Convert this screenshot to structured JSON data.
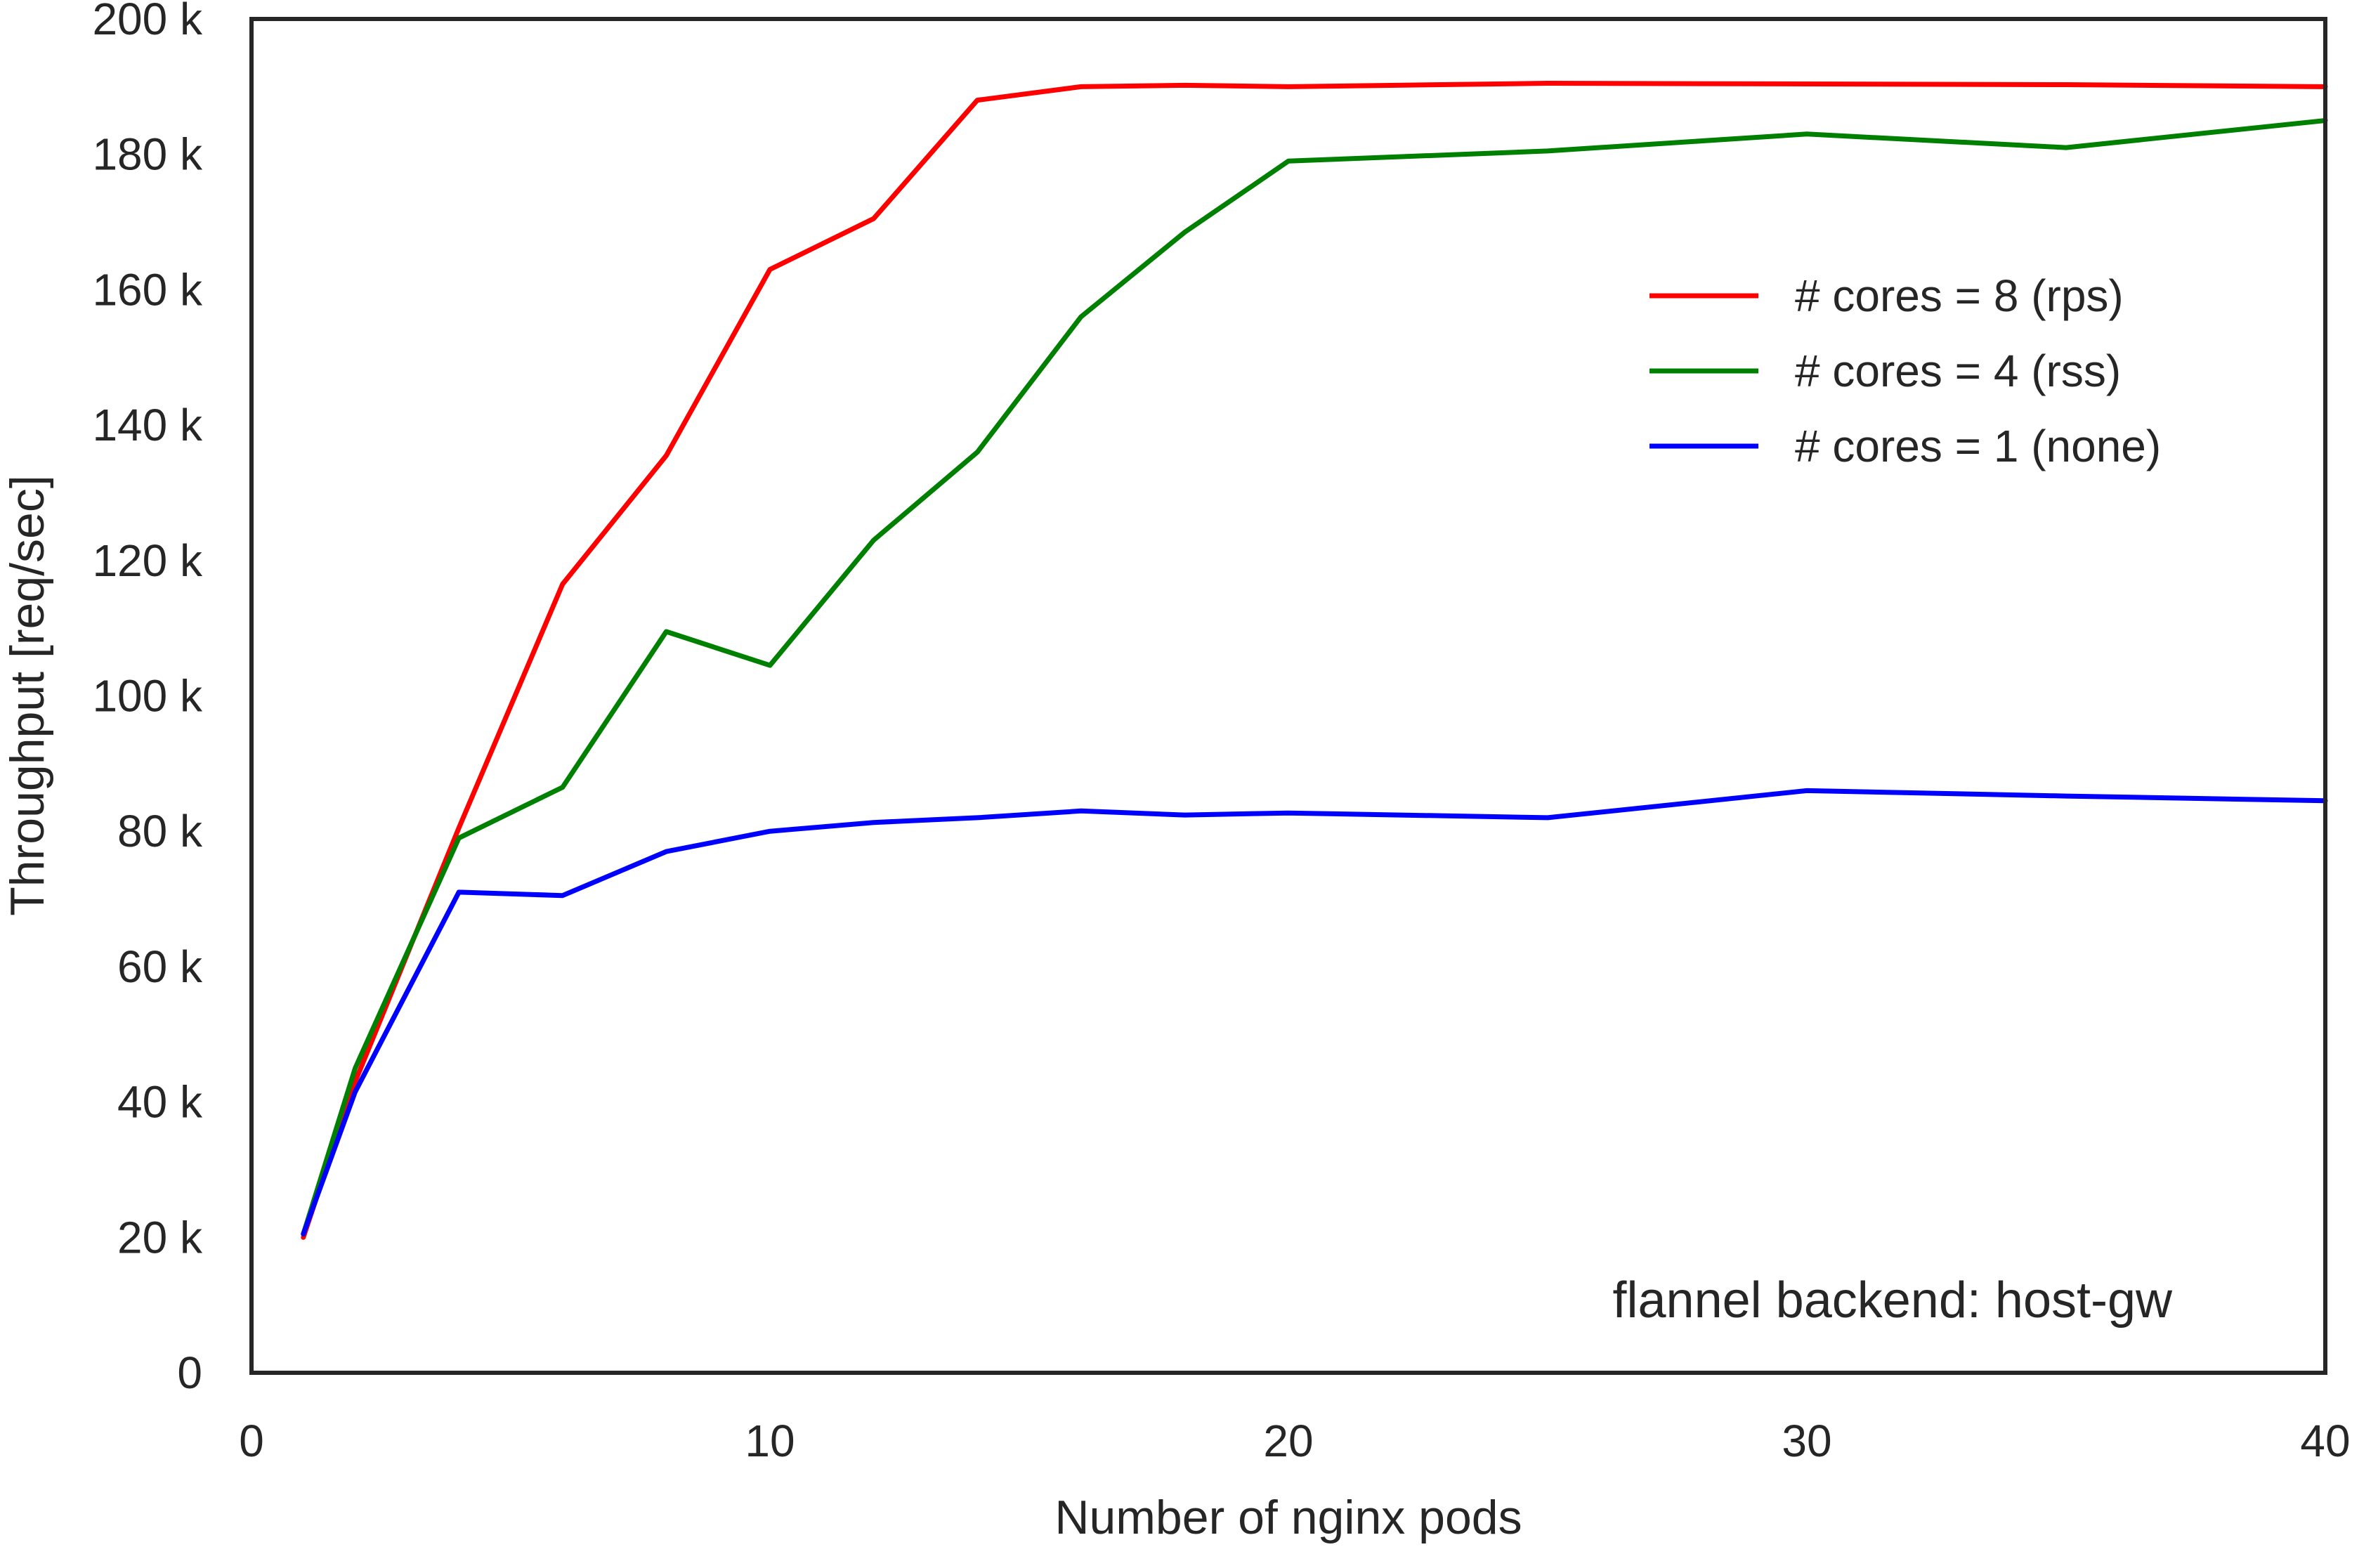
{
  "chart_data": {
    "type": "line",
    "xlabel": "Number of nginx pods",
    "ylabel": "Throughput [req/sec]",
    "xlim": [
      0,
      40
    ],
    "ylim": [
      0,
      200000
    ],
    "xticks": [
      0,
      10,
      20,
      30,
      40
    ],
    "xtick_labels": [
      "0",
      "10",
      "20",
      "30",
      "40"
    ],
    "yticks": [
      0,
      20000,
      40000,
      60000,
      80000,
      100000,
      120000,
      140000,
      160000,
      180000,
      200000
    ],
    "ytick_labels": [
      "0",
      "20 k",
      "40 k",
      "60 k",
      "80 k",
      "100 k",
      "120 k",
      "140 k",
      "160 k",
      "180 k",
      "200 k"
    ],
    "grid": false,
    "legend_position": "upper-right",
    "annotation": "flannel backend: host-gw",
    "series": [
      {
        "name": "# cores = 8 (rps)",
        "color": "#ff0000",
        "x": [
          1,
          2,
          4,
          6,
          8,
          10,
          12,
          14,
          16,
          18,
          20,
          25,
          30,
          35,
          40
        ],
        "y": [
          20000,
          43000,
          80500,
          116500,
          135500,
          163000,
          170500,
          188000,
          190000,
          190200,
          190000,
          190500,
          190400,
          190300,
          190000
        ]
      },
      {
        "name": "# cores = 4 (rss)",
        "color": "#008000",
        "x": [
          1,
          2,
          4,
          6,
          8,
          10,
          12,
          14,
          16,
          18,
          20,
          25,
          30,
          35,
          40
        ],
        "y": [
          20500,
          45000,
          79000,
          86500,
          109500,
          104500,
          123000,
          136000,
          156000,
          168500,
          179000,
          180500,
          183000,
          181000,
          185000
        ]
      },
      {
        "name": "# cores = 1 (none)",
        "color": "#0000ff",
        "x": [
          1,
          2,
          4,
          6,
          8,
          10,
          12,
          14,
          16,
          18,
          20,
          25,
          30,
          35,
          40
        ],
        "y": [
          20500,
          41500,
          71000,
          70500,
          77000,
          80000,
          81300,
          82000,
          83000,
          82400,
          82700,
          82000,
          86000,
          85200,
          84500
        ]
      }
    ]
  }
}
